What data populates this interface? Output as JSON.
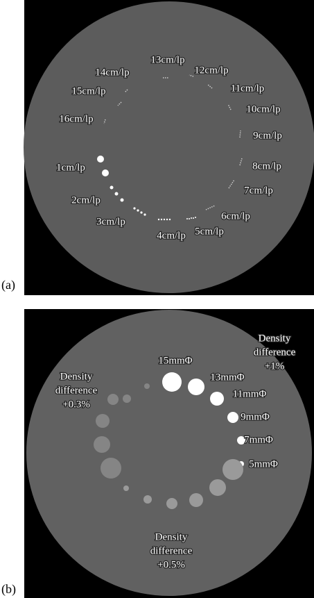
{
  "panels": [
    {
      "label": "(a)",
      "annotations": [
        "13cm/lp",
        "12cm/lp",
        "14cm/lp",
        "11cm/lp",
        "15cm/lp",
        "10cm/lp",
        "16cm/lp",
        "9cm/lp",
        "8cm/lp",
        "1cm/lp",
        "7cm/lp",
        "2cm/lp",
        "6cm/lp",
        "3cm/lp",
        "5cm/lp",
        "4cm/lp"
      ]
    },
    {
      "label": "(b)",
      "annotations": [
        "15mmΦ",
        "13mmΦ",
        "11mmΦ",
        "9mmΦ",
        "7mmΦ",
        "5mmΦ"
      ],
      "notes": [
        {
          "lines": [
            "Density",
            "difference",
            "+1%"
          ]
        },
        {
          "lines": [
            "Density",
            "difference",
            "+0.3%"
          ]
        },
        {
          "lines": [
            "Density",
            "difference",
            "+0.5%"
          ]
        }
      ]
    }
  ]
}
